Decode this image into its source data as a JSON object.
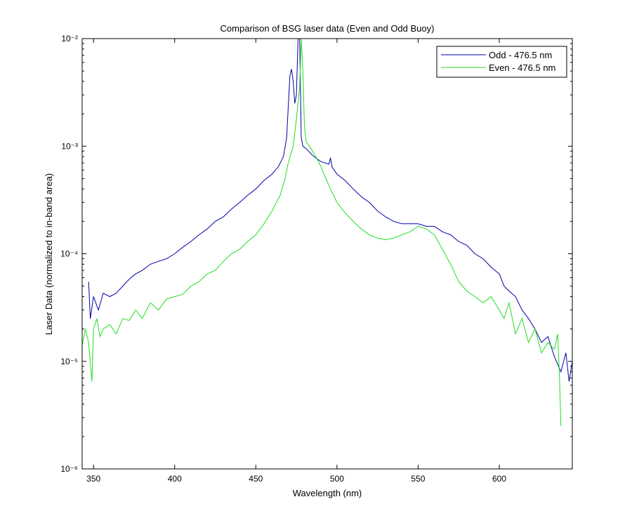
{
  "chart_data": {
    "type": "line",
    "title": "Comparison of BSG laser data (Even and Odd Buoy)",
    "x_label": "Wavelength (nm)",
    "y_label": "Laser Data (normalized to in-band area)",
    "log_y": true,
    "legend": "upper right",
    "xlim": [
      343,
      645
    ],
    "xticks": [
      350,
      400,
      450,
      500,
      550,
      600
    ],
    "ylim": [
      1e-06,
      0.01
    ],
    "yticks": [
      {
        "value": 1e-06,
        "label": "10⁻⁶"
      },
      {
        "value": 1e-05,
        "label": "10⁻⁵"
      },
      {
        "value": 0.0001,
        "label": "10⁻⁴"
      },
      {
        "value": 0.001,
        "label": "10⁻³"
      },
      {
        "value": 0.01,
        "label": "10⁻²"
      }
    ],
    "series": [
      {
        "name": "Odd - 476.5 nm",
        "color": "#0000aa",
        "x": [
          347,
          348,
          350,
          353,
          356,
          360,
          364,
          368,
          372,
          376,
          380,
          385,
          390,
          395,
          400,
          405,
          410,
          415,
          420,
          425,
          430,
          435,
          440,
          445,
          450,
          455,
          460,
          464,
          467,
          469,
          471,
          472,
          473,
          474,
          475,
          476,
          477,
          478,
          479,
          481,
          485,
          490,
          495,
          496,
          497,
          500,
          505,
          510,
          515,
          520,
          525,
          530,
          535,
          540,
          545,
          550,
          555,
          560,
          565,
          570,
          575,
          580,
          585,
          590,
          595,
          600,
          603,
          606,
          610,
          614,
          618,
          622,
          626,
          630,
          634,
          638,
          641,
          643,
          645
        ],
        "values": [
          5.5e-05,
          2.5e-05,
          4e-05,
          3e-05,
          4.3e-05,
          4e-05,
          4.3e-05,
          5e-05,
          5.8e-05,
          6.5e-05,
          7e-05,
          8e-05,
          8.5e-05,
          9e-05,
          0.0001,
          0.000115,
          0.00013,
          0.00015,
          0.00017,
          0.0002,
          0.00022,
          0.00026,
          0.0003,
          0.00035,
          0.0004,
          0.00048,
          0.00055,
          0.00065,
          0.0008,
          0.0012,
          0.0045,
          0.0052,
          0.004,
          0.0025,
          0.003,
          0.01,
          0.01,
          0.0012,
          0.001,
          0.00095,
          0.00082,
          0.00072,
          0.00068,
          0.00078,
          0.00064,
          0.00055,
          0.00048,
          0.0004,
          0.00034,
          0.0003,
          0.00025,
          0.00022,
          0.0002,
          0.00019,
          0.00019,
          0.00019,
          0.00018,
          0.00018,
          0.00016,
          0.00015,
          0.00013,
          0.00012,
          0.0001,
          9e-05,
          7.5e-05,
          6.5e-05,
          5e-05,
          4.5e-05,
          4e-05,
          3e-05,
          2.5e-05,
          2e-05,
          1.5e-05,
          1.7e-05,
          1.1e-05,
          8e-06,
          1.2e-05,
          6.5e-06,
          1e-05
        ]
      },
      {
        "name": "Even - 476.5 nm",
        "color": "#22dd22",
        "x": [
          343,
          345,
          347,
          349,
          350,
          352,
          354,
          356,
          360,
          364,
          368,
          372,
          376,
          380,
          385,
          390,
          395,
          400,
          405,
          410,
          415,
          420,
          425,
          430,
          435,
          440,
          445,
          450,
          455,
          460,
          465,
          468,
          470,
          473,
          475,
          477,
          478,
          479,
          480,
          481,
          484,
          487,
          490,
          492,
          496,
          500,
          505,
          510,
          515,
          520,
          525,
          530,
          535,
          540,
          545,
          550,
          555,
          560,
          565,
          570,
          575,
          580,
          585,
          590,
          595,
          600,
          603,
          606,
          610,
          614,
          618,
          622,
          626,
          630,
          634,
          636,
          637,
          638
        ],
        "values": [
          1.4e-05,
          2e-05,
          1.5e-05,
          6.5e-06,
          2e-05,
          2.5e-05,
          1.7e-05,
          2e-05,
          2.2e-05,
          1.8e-05,
          2.5e-05,
          2.4e-05,
          3e-05,
          2.5e-05,
          3.5e-05,
          3e-05,
          3.8e-05,
          4e-05,
          4.2e-05,
          5e-05,
          5.5e-05,
          6.5e-05,
          7e-05,
          8.5e-05,
          0.0001,
          0.00011,
          0.00013,
          0.00015,
          0.00019,
          0.00025,
          0.00035,
          0.0005,
          0.0007,
          0.001,
          0.0018,
          0.0035,
          0.01,
          0.005,
          0.0015,
          0.0011,
          0.00095,
          0.0008,
          0.00065,
          0.00055,
          0.0004,
          0.0003,
          0.00024,
          0.0002,
          0.00017,
          0.00015,
          0.00014,
          0.000135,
          0.00014,
          0.00015,
          0.00016,
          0.00018,
          0.00017,
          0.00015,
          0.00011,
          8e-05,
          5.5e-05,
          4.5e-05,
          4e-05,
          3.5e-05,
          4e-05,
          3e-05,
          2.5e-05,
          3.5e-05,
          1.8e-05,
          2.5e-05,
          1.5e-05,
          2e-05,
          1.2e-05,
          1.5e-05,
          1.3e-05,
          1.8e-05,
          8e-06,
          2.5e-06
        ]
      }
    ]
  }
}
